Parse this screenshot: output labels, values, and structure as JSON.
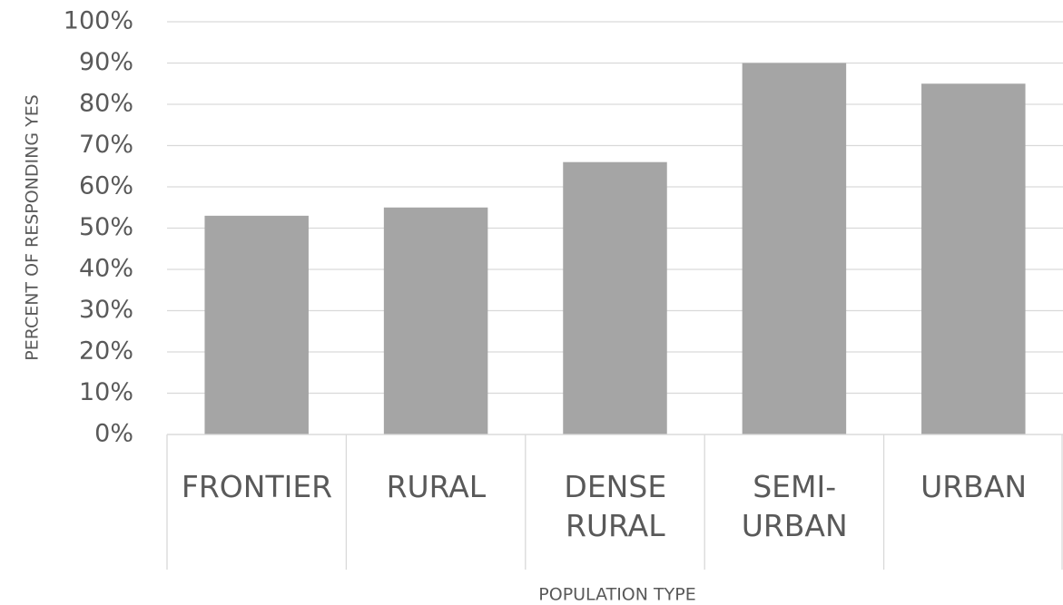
{
  "chart_data": {
    "type": "bar",
    "categories": [
      "FRONTIER",
      "RURAL",
      "DENSE RURAL",
      "SEMI-URBAN",
      "URBAN"
    ],
    "values": [
      53,
      55,
      66,
      90,
      85
    ],
    "color": "#a5a5a5",
    "xlabel": "POPULATION TYPE",
    "ylabel": "PERCENT OF RESPONDING YES",
    "ylim": [
      0,
      100
    ],
    "yticks": [
      {
        "value": 0,
        "label": "0%"
      },
      {
        "value": 10,
        "label": "10%"
      },
      {
        "value": 20,
        "label": "20%"
      },
      {
        "value": 30,
        "label": "30%"
      },
      {
        "value": 40,
        "label": "40%"
      },
      {
        "value": 50,
        "label": "50%"
      },
      {
        "value": 60,
        "label": "60%"
      },
      {
        "value": 70,
        "label": "70%"
      },
      {
        "value": 80,
        "label": "80%"
      },
      {
        "value": 90,
        "label": "90%"
      },
      {
        "value": 100,
        "label": "100%"
      }
    ],
    "grid": true
  }
}
